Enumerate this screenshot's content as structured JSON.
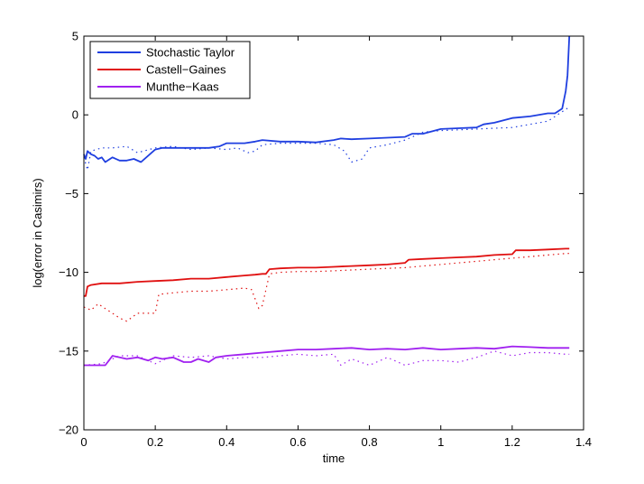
{
  "chart_data": {
    "type": "line",
    "title": "",
    "xlabel": "time",
    "ylabel": "log(error in Casimirs)",
    "xlim": [
      0,
      1.4
    ],
    "ylim": [
      -20,
      5
    ],
    "xticks": [
      0,
      0.2,
      0.4,
      0.6,
      0.8,
      1,
      1.2,
      1.4
    ],
    "xtick_labels": [
      "0",
      "0.2",
      "0.4",
      "0.6",
      "0.8",
      "1",
      "1.2",
      "1.4"
    ],
    "yticks": [
      -20,
      -15,
      -10,
      -5,
      0,
      5
    ],
    "ytick_labels": [
      "−20",
      "−15",
      "−10",
      "−5",
      "0",
      "5"
    ],
    "grid": false,
    "legend_position": "top-left",
    "series": [
      {
        "name": "Stochastic Taylor",
        "color": "#1f3fe0",
        "style": "solid",
        "x": [
          0,
          0.005,
          0.01,
          0.02,
          0.03,
          0.04,
          0.05,
          0.06,
          0.08,
          0.1,
          0.12,
          0.14,
          0.16,
          0.2,
          0.22,
          0.25,
          0.3,
          0.35,
          0.38,
          0.4,
          0.45,
          0.48,
          0.5,
          0.55,
          0.6,
          0.65,
          0.7,
          0.72,
          0.75,
          0.8,
          0.85,
          0.9,
          0.92,
          0.95,
          1.0,
          1.05,
          1.1,
          1.12,
          1.15,
          1.2,
          1.25,
          1.3,
          1.32,
          1.34,
          1.35,
          1.355,
          1.36
        ],
        "y": [
          -2.5,
          -2.8,
          -2.3,
          -2.5,
          -2.6,
          -2.8,
          -2.7,
          -3.0,
          -2.7,
          -2.9,
          -2.9,
          -2.8,
          -3.0,
          -2.2,
          -2.1,
          -2.1,
          -2.1,
          -2.1,
          -2.0,
          -1.8,
          -1.8,
          -1.7,
          -1.6,
          -1.7,
          -1.7,
          -1.75,
          -1.6,
          -1.5,
          -1.55,
          -1.5,
          -1.45,
          -1.4,
          -1.2,
          -1.2,
          -0.9,
          -0.85,
          -0.8,
          -0.6,
          -0.5,
          -0.2,
          -0.1,
          0.1,
          0.1,
          0.4,
          1.5,
          2.5,
          5.0
        ]
      },
      {
        "name": "",
        "color": "#1f3fe0",
        "style": "dotted",
        "x": [
          0,
          0.01,
          0.02,
          0.05,
          0.08,
          0.12,
          0.15,
          0.2,
          0.25,
          0.3,
          0.35,
          0.4,
          0.43,
          0.46,
          0.48,
          0.5,
          0.55,
          0.6,
          0.65,
          0.7,
          0.73,
          0.75,
          0.78,
          0.8,
          0.85,
          0.9,
          0.95,
          1.0,
          1.05,
          1.1,
          1.15,
          1.2,
          1.25,
          1.3,
          1.34,
          1.36
        ],
        "y": [
          -2.7,
          -3.5,
          -2.3,
          -2.1,
          -2.1,
          -2.0,
          -2.4,
          -2.1,
          -2.0,
          -2.2,
          -2.1,
          -2.2,
          -2.1,
          -2.4,
          -2.3,
          -1.9,
          -1.8,
          -1.8,
          -1.8,
          -1.9,
          -2.3,
          -3.0,
          -2.8,
          -2.1,
          -1.9,
          -1.6,
          -1.1,
          -1.0,
          -0.95,
          -0.9,
          -0.85,
          -0.8,
          -0.6,
          -0.4,
          0.2,
          0.5
        ]
      },
      {
        "name": "Castell−Gaines",
        "color": "#e01010",
        "style": "solid",
        "x": [
          0,
          0.005,
          0.01,
          0.02,
          0.05,
          0.1,
          0.15,
          0.2,
          0.25,
          0.3,
          0.35,
          0.4,
          0.45,
          0.48,
          0.5,
          0.51,
          0.52,
          0.55,
          0.6,
          0.65,
          0.7,
          0.75,
          0.8,
          0.85,
          0.9,
          0.91,
          0.95,
          1.0,
          1.05,
          1.1,
          1.15,
          1.2,
          1.21,
          1.25,
          1.3,
          1.35,
          1.36
        ],
        "y": [
          -11.5,
          -11.5,
          -10.9,
          -10.8,
          -10.7,
          -10.7,
          -10.6,
          -10.55,
          -10.5,
          -10.4,
          -10.4,
          -10.3,
          -10.2,
          -10.15,
          -10.1,
          -10.1,
          -9.8,
          -9.75,
          -9.7,
          -9.7,
          -9.65,
          -9.6,
          -9.55,
          -9.5,
          -9.4,
          -9.2,
          -9.15,
          -9.1,
          -9.05,
          -9.0,
          -8.9,
          -8.85,
          -8.6,
          -8.6,
          -8.55,
          -8.5,
          -8.5
        ]
      },
      {
        "name": "",
        "color": "#e01010",
        "style": "dotted",
        "x": [
          0,
          0.02,
          0.04,
          0.06,
          0.08,
          0.1,
          0.12,
          0.15,
          0.2,
          0.21,
          0.25,
          0.3,
          0.35,
          0.4,
          0.45,
          0.47,
          0.49,
          0.5,
          0.52,
          0.55,
          0.6,
          0.65,
          0.7,
          0.75,
          0.8,
          0.85,
          0.9,
          0.95,
          1.0,
          1.05,
          1.1,
          1.15,
          1.2,
          1.25,
          1.3,
          1.35,
          1.36
        ],
        "y": [
          -12.2,
          -12.4,
          -12.0,
          -12.3,
          -12.6,
          -12.9,
          -13.1,
          -12.6,
          -12.6,
          -11.4,
          -11.3,
          -11.2,
          -11.2,
          -11.1,
          -11.0,
          -11.1,
          -12.3,
          -12.1,
          -10.1,
          -10.0,
          -9.95,
          -9.95,
          -9.9,
          -9.85,
          -9.8,
          -9.75,
          -9.7,
          -9.6,
          -9.5,
          -9.4,
          -9.3,
          -9.2,
          -9.1,
          -9.0,
          -8.9,
          -8.8,
          -8.8
        ]
      },
      {
        "name": "Munthe−Kaas",
        "color": "#a020f0",
        "style": "solid",
        "x": [
          0,
          0.02,
          0.04,
          0.06,
          0.07,
          0.08,
          0.1,
          0.12,
          0.15,
          0.18,
          0.2,
          0.22,
          0.25,
          0.28,
          0.3,
          0.32,
          0.35,
          0.37,
          0.4,
          0.45,
          0.5,
          0.55,
          0.6,
          0.65,
          0.7,
          0.75,
          0.8,
          0.85,
          0.9,
          0.95,
          1.0,
          1.05,
          1.1,
          1.15,
          1.2,
          1.25,
          1.3,
          1.35,
          1.36
        ],
        "y": [
          -15.9,
          -15.9,
          -15.9,
          -15.9,
          -15.6,
          -15.3,
          -15.4,
          -15.5,
          -15.4,
          -15.6,
          -15.4,
          -15.5,
          -15.4,
          -15.7,
          -15.7,
          -15.5,
          -15.7,
          -15.4,
          -15.3,
          -15.2,
          -15.1,
          -15.0,
          -14.9,
          -14.9,
          -14.85,
          -14.8,
          -14.9,
          -14.85,
          -14.9,
          -14.8,
          -14.9,
          -14.85,
          -14.8,
          -14.85,
          -14.7,
          -14.75,
          -14.8,
          -14.8,
          -14.8
        ]
      },
      {
        "name": "",
        "color": "#a020f0",
        "style": "dotted",
        "x": [
          0,
          0.05,
          0.1,
          0.15,
          0.2,
          0.25,
          0.3,
          0.35,
          0.4,
          0.45,
          0.5,
          0.55,
          0.6,
          0.65,
          0.7,
          0.72,
          0.75,
          0.8,
          0.85,
          0.9,
          0.95,
          1.0,
          1.05,
          1.1,
          1.15,
          1.2,
          1.25,
          1.3,
          1.35,
          1.36
        ],
        "y": [
          -15.9,
          -15.8,
          -15.3,
          -15.3,
          -15.8,
          -15.3,
          -15.4,
          -15.3,
          -15.5,
          -15.4,
          -15.4,
          -15.3,
          -15.2,
          -15.3,
          -15.2,
          -15.9,
          -15.5,
          -15.9,
          -15.4,
          -15.9,
          -15.6,
          -15.6,
          -15.7,
          -15.4,
          -15.0,
          -15.3,
          -15.1,
          -15.1,
          -15.2,
          -15.2
        ]
      }
    ]
  }
}
